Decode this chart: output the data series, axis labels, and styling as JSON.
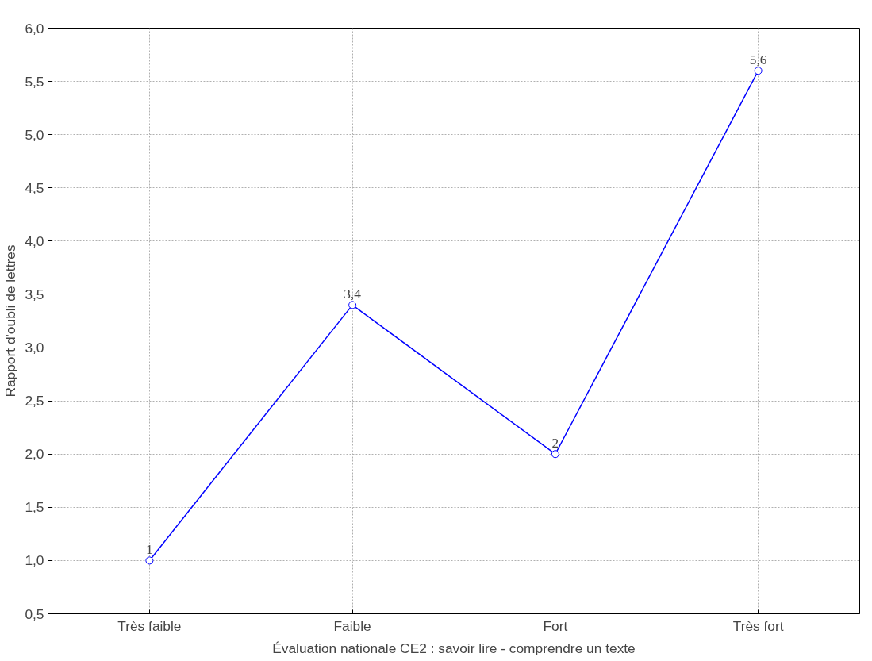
{
  "chart_data": {
    "type": "line",
    "xlabel": "Évaluation nationale CE2 : savoir lire - comprendre un texte",
    "ylabel": "Rapport d'oubli de lettres",
    "categories": [
      "Très faible",
      "Faible",
      "Fort",
      "Très fort"
    ],
    "series": [
      {
        "color": "#0000ff",
        "values": [
          1,
          3.4,
          2,
          5.6
        ],
        "value_labels": [
          "1",
          "3,4",
          "2",
          "5,6"
        ]
      }
    ],
    "ylim": [
      0.5,
      6.0
    ],
    "yticks": [
      {
        "value": 0.5,
        "label": "0,5"
      },
      {
        "value": 1.0,
        "label": "1,0"
      },
      {
        "value": 1.5,
        "label": "1,5"
      },
      {
        "value": 2.0,
        "label": "2,0"
      },
      {
        "value": 2.5,
        "label": "2,5"
      },
      {
        "value": 3.0,
        "label": "3,0"
      },
      {
        "value": 3.5,
        "label": "3,5"
      },
      {
        "value": 4.0,
        "label": "4,0"
      },
      {
        "value": 4.5,
        "label": "4,5"
      },
      {
        "value": 5.0,
        "label": "5,0"
      },
      {
        "value": 5.5,
        "label": "5,5"
      },
      {
        "value": 6.0,
        "label": "6,0"
      }
    ],
    "grid": true,
    "marker": "circle",
    "line_style": "solid"
  }
}
